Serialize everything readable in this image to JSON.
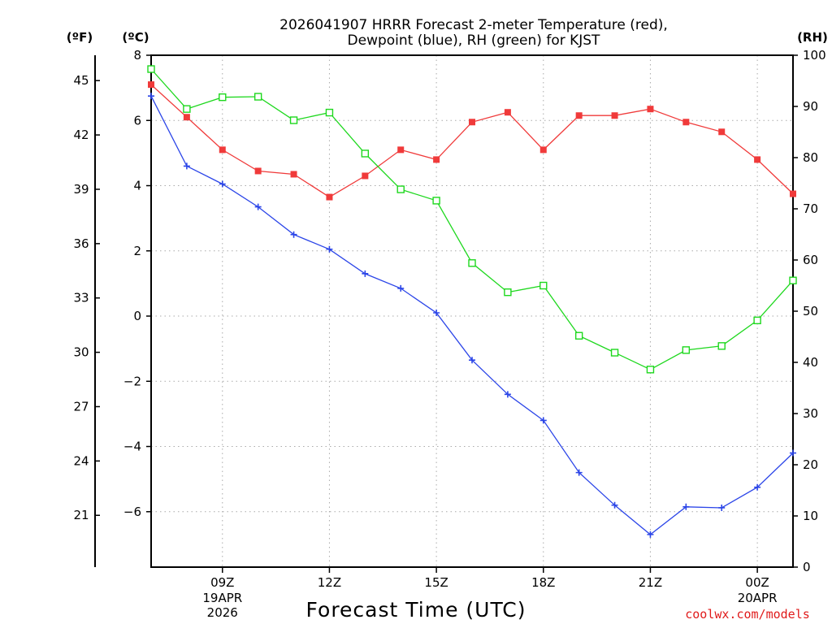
{
  "chart_data": {
    "type": "line",
    "title_lines": [
      "2026041907 HRRR Forecast 2-meter Temperature (red),",
      "Dewpoint (blue), RH (green) for KJST"
    ],
    "xlabel": "Forecast Time (UTC)",
    "credit": "coolwx.com/models",
    "x_hours": [
      7,
      8,
      9,
      10,
      11,
      12,
      13,
      14,
      15,
      16,
      17,
      18,
      19,
      20,
      21,
      22,
      23,
      24,
      25
    ],
    "xlim": [
      7,
      25
    ],
    "x_ticks": [
      {
        "hour": 9,
        "label": "09Z",
        "date": "19APR",
        "year": "2026"
      },
      {
        "hour": 12,
        "label": "12Z",
        "date": "",
        "year": ""
      },
      {
        "hour": 15,
        "label": "15Z",
        "date": "",
        "year": ""
      },
      {
        "hour": 18,
        "label": "18Z",
        "date": "",
        "year": ""
      },
      {
        "hour": 21,
        "label": "21Z",
        "date": "",
        "year": ""
      },
      {
        "hour": 24,
        "label": "00Z",
        "date": "20APR",
        "year": ""
      }
    ],
    "y_left_c": {
      "unit": "(ºC)",
      "range": [
        -7.7,
        8
      ],
      "ticks": [
        "8",
        "6",
        "4",
        "2",
        "0",
        "−2",
        "−4",
        "−6"
      ],
      "tick_values": [
        8,
        6,
        4,
        2,
        0,
        -2,
        -4,
        -6
      ]
    },
    "y_left_f": {
      "unit": "(ºF)",
      "ticks": [
        "45",
        "42",
        "39",
        "36",
        "33",
        "30",
        "27",
        "24",
        "21"
      ],
      "tick_values": [
        45,
        42,
        39,
        36,
        33,
        30,
        27,
        24,
        21
      ]
    },
    "y_right_rh": {
      "unit": "(RH)",
      "range": [
        0,
        100
      ],
      "ticks": [
        "100",
        "90",
        "80",
        "70",
        "60",
        "50",
        "40",
        "30",
        "20",
        "10",
        "0"
      ],
      "tick_values": [
        100,
        90,
        80,
        70,
        60,
        50,
        40,
        30,
        20,
        10,
        0
      ]
    },
    "series": [
      {
        "name": "Temperature",
        "axis": "C",
        "color": "#f03a3a",
        "marker": "filled-square",
        "values": [
          7.1,
          6.1,
          5.1,
          4.45,
          4.35,
          3.65,
          4.3,
          5.1,
          4.8,
          5.95,
          6.25,
          5.1,
          6.15,
          6.15,
          6.35,
          5.95,
          5.65,
          4.8,
          3.75
        ]
      },
      {
        "name": "Dewpoint",
        "axis": "C",
        "color": "#2b45e8",
        "marker": "plus",
        "values": [
          6.75,
          4.6,
          4.05,
          3.35,
          2.5,
          2.05,
          1.3,
          0.85,
          0.1,
          -1.35,
          -2.4,
          -3.2,
          -4.8,
          -5.8,
          -6.7,
          -5.85,
          -5.88,
          -5.25,
          -4.2
        ]
      },
      {
        "name": "RH",
        "axis": "RH",
        "color": "#1ed81e",
        "marker": "open-square",
        "values": [
          97.3,
          89.5,
          91.8,
          91.9,
          87.3,
          88.8,
          80.8,
          73.8,
          71.6,
          59.4,
          53.7,
          55.0,
          45.2,
          41.9,
          38.6,
          42.4,
          43.2,
          48.2,
          56.0
        ]
      }
    ]
  }
}
